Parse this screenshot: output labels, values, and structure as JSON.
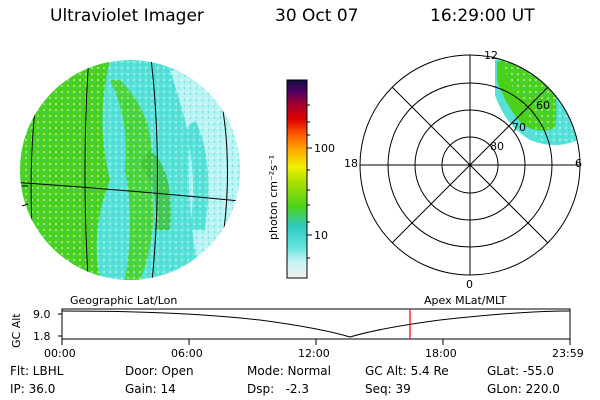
{
  "header": {
    "instrument": "Ultraviolet Imager",
    "date": "30 Oct 07",
    "time": "16:29:00 UT"
  },
  "colorbar": {
    "unit_label": "photon cm⁻²s⁻¹",
    "ticks": [
      "100",
      "10"
    ]
  },
  "polar": {
    "mlt_labels": [
      "12",
      "18",
      "6",
      "0"
    ],
    "lat_labels": [
      "80",
      "70",
      "60"
    ]
  },
  "timeline": {
    "left_label": "Geographic Lat/Lon",
    "right_label": "Apex MLat/MLT",
    "y_axis_title": "GC Alt",
    "y_ticks": [
      "9.0",
      "1.8"
    ],
    "x_ticks": [
      "00:00",
      "06:00",
      "12:00",
      "18:00",
      "23:59"
    ],
    "marker_time": "16:29"
  },
  "info": {
    "filter": "Flt: LBHL",
    "ip": "IP: 36.0",
    "door": "Door: Open",
    "gain": "Gain: 14",
    "mode": "Mode: Normal",
    "dsp": "Dsp:   -2.3",
    "gc_alt": "GC Alt: 5.4 Re",
    "seq": "Seq: 39",
    "glat": "GLat: -55.0",
    "glon": "GLon: 220.0"
  },
  "colors": {
    "green": "#4cd11a",
    "cyan": "#55e0d8",
    "lightcyan": "#b8f2f2",
    "red": "#e60000"
  }
}
